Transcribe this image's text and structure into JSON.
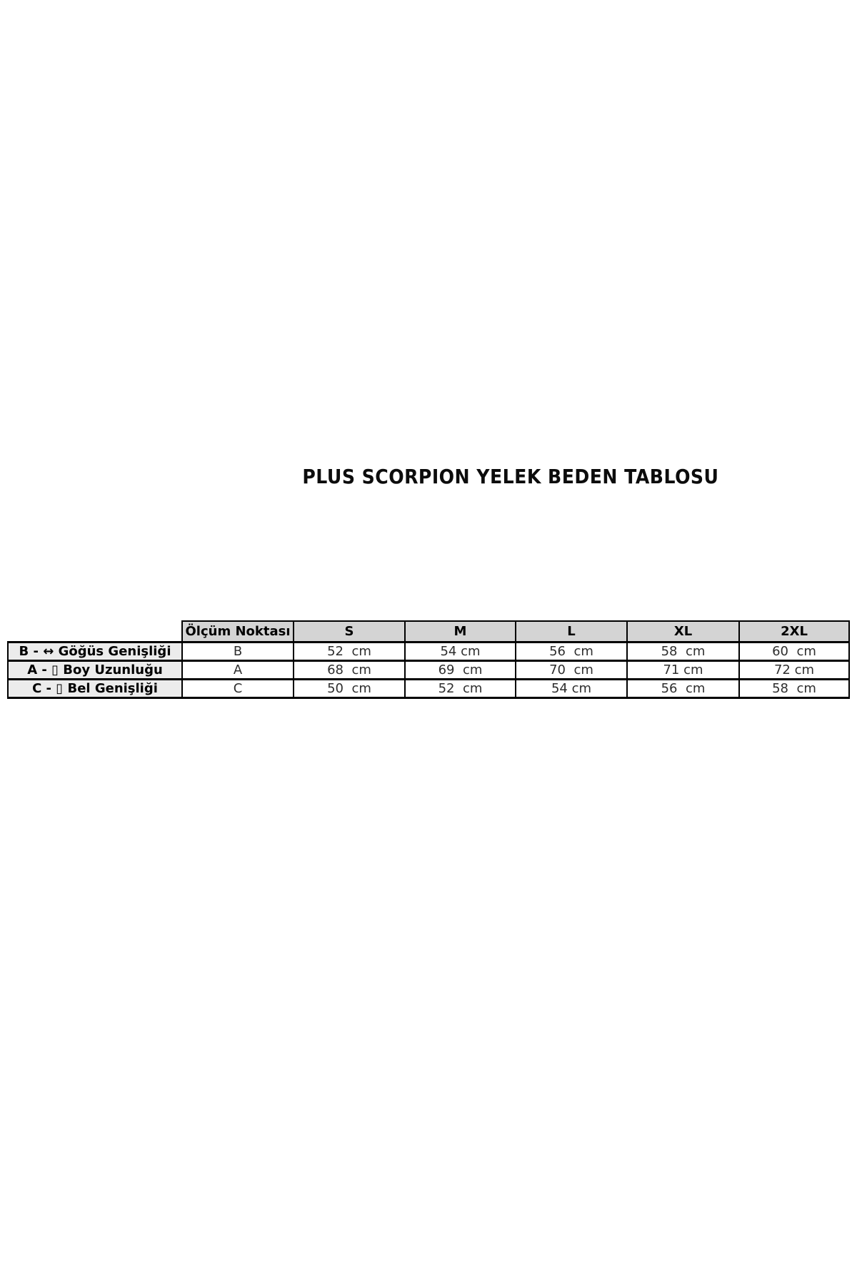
{
  "page_title": "PLUS SCORPION YELEK BEDEN TABLOSU",
  "chart_data": {
    "type": "table",
    "title": "PLUS SCORPION YELEK BEDEN TABLOSU",
    "columns": [
      "Ölçüm Noktası",
      "S",
      "M",
      "L",
      "XL",
      "2XL"
    ],
    "rows": [
      {
        "letter": "B - ",
        "icon_glyph": "↔",
        "measure": " Göğüs Genişliği",
        "point": "B",
        "values": [
          "52  cm",
          "54 cm",
          "56  cm",
          "58  cm",
          "60  cm"
        ]
      },
      {
        "letter": "A - ",
        "icon_glyph": "▯",
        "measure": " Boy Uzunluğu",
        "point": "A",
        "values": [
          "68  cm",
          "69  cm",
          "70  cm",
          "71 cm",
          "72 cm"
        ]
      },
      {
        "letter": "C - ",
        "icon_glyph": "▯",
        "measure": " Bel Genişliği",
        "point": "C",
        "values": [
          "50  cm",
          "52  cm",
          "54 cm",
          "56  cm",
          "58  cm"
        ]
      }
    ]
  },
  "colors": {
    "background": "#ffffff",
    "title_text": "#0c0c0c",
    "header_bg": "#d4d4d4",
    "row_label_bg": "#ececec",
    "cell_bg": "#ffffff",
    "border": "#000000",
    "value_text": "#2e2e2e"
  }
}
